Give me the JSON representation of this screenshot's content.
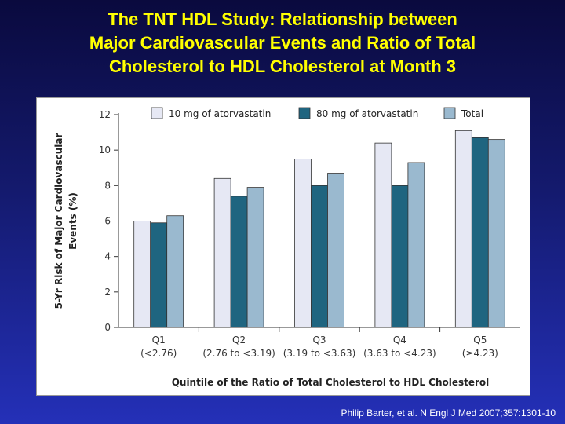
{
  "title_lines": [
    "The TNT HDL Study: Relationship between",
    "Major Cardiovascular Events and Ratio of Total",
    "Cholesterol to HDL Cholesterol at Month 3"
  ],
  "citation": "Philip Barter, et al. N Engl J Med 2007;357:1301-10",
  "chart_data": {
    "type": "bar",
    "categories": [
      "Q1",
      "Q2",
      "Q3",
      "Q4",
      "Q5"
    ],
    "category_sublabels": [
      "(<2.76)",
      "(2.76 to <3.19)",
      "(3.19 to <3.63)",
      "(3.63 to <4.23)",
      "(≥4.23)"
    ],
    "series": [
      {
        "name": "10 mg of atorvastatin",
        "values": [
          6.0,
          8.4,
          9.5,
          10.4,
          11.1
        ],
        "color": "#e6e8f4"
      },
      {
        "name": "80 mg of atorvastatin",
        "values": [
          5.9,
          7.4,
          8.0,
          8.0,
          10.7
        ],
        "color": "#1f6580"
      },
      {
        "name": "Total",
        "values": [
          6.3,
          7.9,
          8.7,
          9.3,
          10.6
        ],
        "color": "#9ab9cf"
      }
    ],
    "xlabel": "Quintile of the Ratio of Total Cholesterol to HDL Cholesterol",
    "ylabel_lines": [
      "5-Yr Risk of Major Cardiovascular",
      "Events (%)"
    ],
    "yticks": [
      0,
      2,
      4,
      6,
      8,
      10,
      12
    ],
    "ylim": [
      0,
      12
    ],
    "legend_position": "top"
  }
}
